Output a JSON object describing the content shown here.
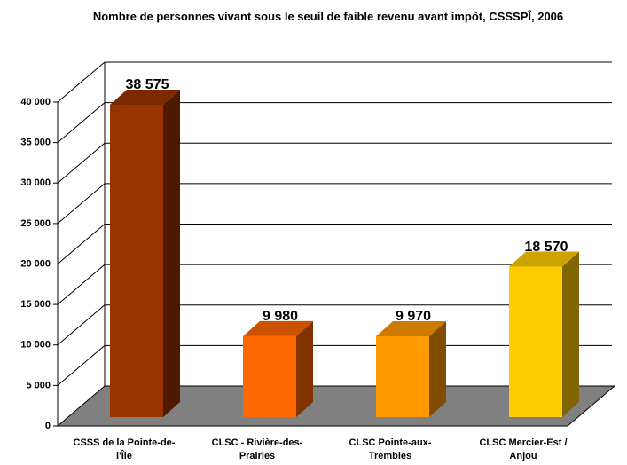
{
  "chart_data": {
    "type": "bar",
    "title": "Nombre de personnes vivant sous le seuil de faible revenu avant impôt, CSSSPÎ, 2006",
    "categories": [
      "CSSS de la Pointe-de-l'Île",
      "CLSC - Rivière-des-Prairies",
      "CLSC Pointe-aux-Trembles",
      "CLSC Mercier-Est / Anjou"
    ],
    "values": [
      38575,
      9980,
      9970,
      18570
    ],
    "value_labels": [
      "38 575",
      "9 980",
      "9 970",
      "18 570"
    ],
    "colors": [
      "#993300",
      "#FF6600",
      "#FF9900",
      "#FFCC00"
    ],
    "ylim": [
      0,
      40000
    ],
    "yticks": [
      0,
      {
        "value": 5000,
        "label": "5 000"
      },
      {
        "value": 10000,
        "label": "10 000"
      },
      {
        "value": 15000,
        "label": "15 000"
      },
      {
        "value": 20000,
        "label": "20 000"
      },
      {
        "value": 25000,
        "label": "25 000"
      },
      {
        "value": 30000,
        "label": "30 000"
      },
      {
        "value": 35000,
        "label": "35 000"
      },
      {
        "value": 40000,
        "label": "40 000"
      }
    ],
    "grid": true
  }
}
